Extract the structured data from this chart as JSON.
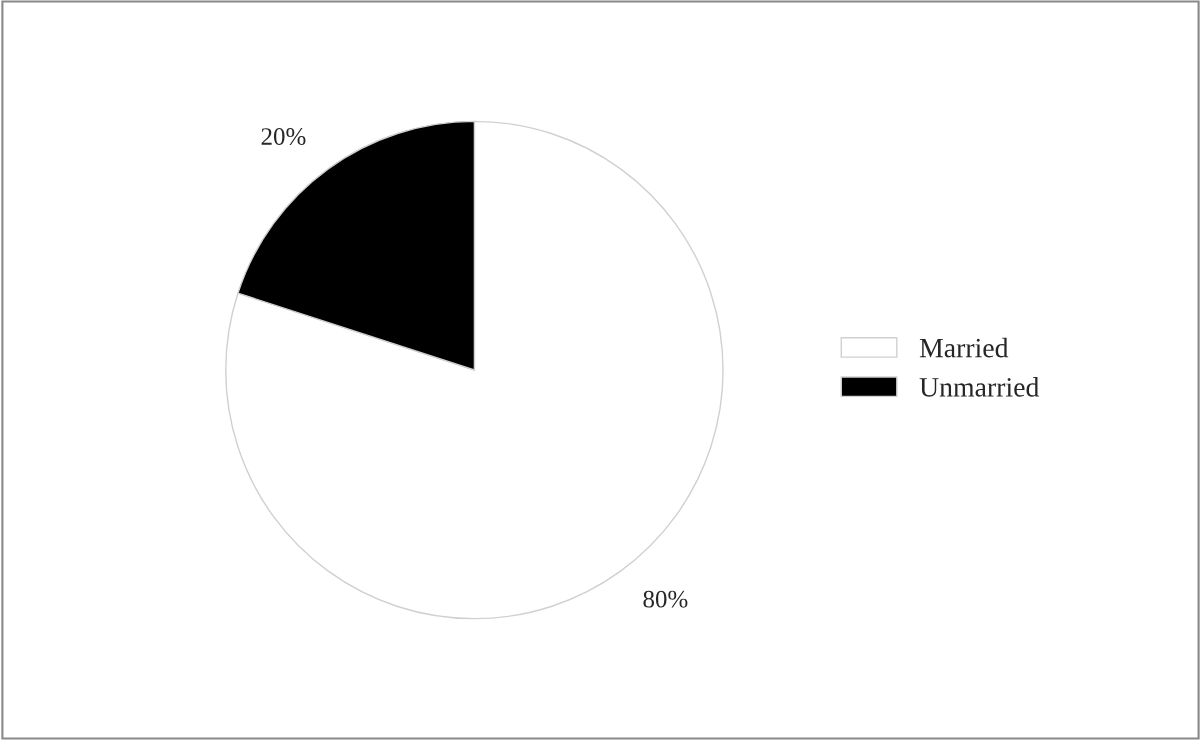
{
  "chart_data": {
    "type": "pie",
    "categories": [
      "Married",
      "Unmarried"
    ],
    "values": [
      80,
      20
    ],
    "colors": [
      "#ffffff",
      "#000000"
    ],
    "value_labels": [
      "80%",
      "20%"
    ],
    "legend": "right"
  }
}
